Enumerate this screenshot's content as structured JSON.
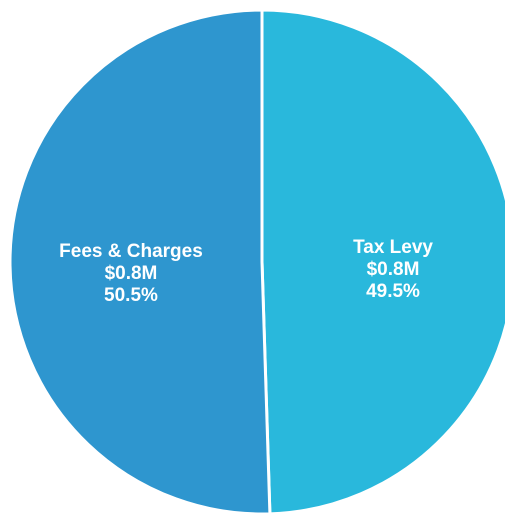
{
  "chart_data": {
    "type": "pie",
    "categories": [
      "Tax Levy",
      "Fees & Charges"
    ],
    "values": [
      49.5,
      50.5
    ],
    "value_labels": [
      "49.5%",
      "50.5%"
    ],
    "amount_labels": [
      "$0.8M",
      "$0.8M"
    ],
    "colors": [
      "#29b8dc",
      "#2e96cf"
    ]
  }
}
